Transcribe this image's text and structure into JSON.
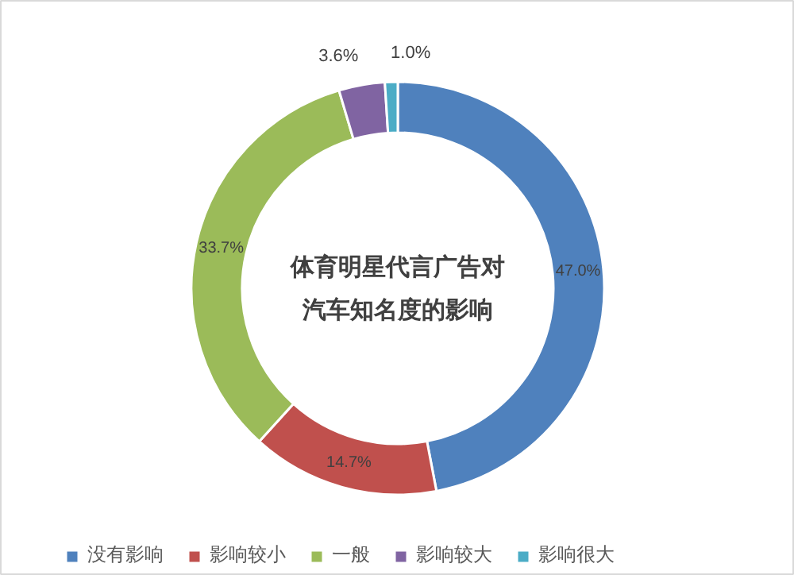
{
  "chart_data": {
    "type": "donut",
    "title": "体育明星代言广告对汽车知名度的影响",
    "categories": [
      "没有影响",
      "影响较小",
      "一般",
      "影响较大",
      "影响很大"
    ],
    "values": [
      47.0,
      14.7,
      33.7,
      3.6,
      1.0
    ],
    "colors": [
      "#4f81bd",
      "#c0504d",
      "#9bbb59",
      "#8064a2",
      "#4bacc6"
    ],
    "value_labels": [
      "47.0%",
      "14.7%",
      "33.7%",
      "3.6%",
      "1.0%"
    ],
    "legend": "bottom"
  }
}
